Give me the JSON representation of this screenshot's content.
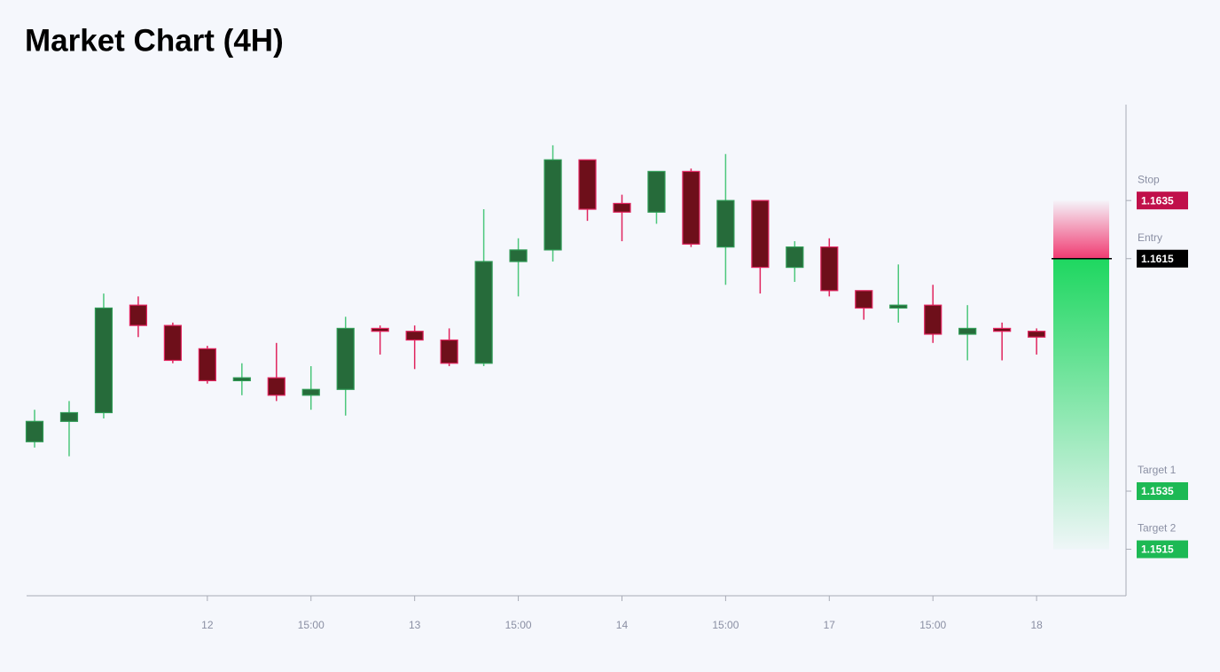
{
  "chart_data": {
    "type": "candlestick",
    "title": "Market Chart (4H)",
    "categories": [
      null,
      null,
      null,
      null,
      null,
      "12",
      null,
      null,
      "15:00",
      null,
      null,
      "13",
      null,
      null,
      "15:00",
      null,
      null,
      "14",
      null,
      null,
      "15:00",
      null,
      null,
      "17",
      null,
      null,
      "15:00",
      null,
      null,
      "18"
    ],
    "open": [
      1.1552,
      1.1559,
      1.1562,
      1.1599,
      1.1592,
      1.1584,
      1.1573,
      1.1574,
      1.1568,
      1.157,
      1.1591,
      1.159,
      1.1587,
      1.1579,
      1.1614,
      1.1618,
      1.1649,
      1.1634,
      1.1631,
      1.1645,
      1.1619,
      1.1635,
      1.1612,
      1.1619,
      1.1604,
      1.1598,
      1.1599,
      1.1589,
      1.1591,
      1.159
    ],
    "high": [
      1.1563,
      1.1566,
      1.1603,
      1.1602,
      1.1593,
      1.1585,
      1.1579,
      1.1586,
      1.1578,
      1.1595,
      1.1592,
      1.1592,
      1.1591,
      1.1632,
      1.1622,
      1.1654,
      1.1649,
      1.1637,
      1.1645,
      1.1646,
      1.1651,
      1.1635,
      1.1621,
      1.1622,
      1.1604,
      1.1613,
      1.1606,
      1.1599,
      1.1593,
      1.1591
    ],
    "low": [
      1.155,
      1.1547,
      1.156,
      1.1588,
      1.1579,
      1.1572,
      1.1568,
      1.1566,
      1.1563,
      1.1561,
      1.1582,
      1.1577,
      1.1578,
      1.1578,
      1.1602,
      1.1614,
      1.1628,
      1.1621,
      1.1627,
      1.1619,
      1.1606,
      1.1603,
      1.1607,
      1.1602,
      1.1594,
      1.1593,
      1.1586,
      1.158,
      1.158,
      1.1582
    ],
    "close": [
      1.1559,
      1.1562,
      1.1598,
      1.1592,
      1.158,
      1.1573,
      1.1574,
      1.1568,
      1.157,
      1.1591,
      1.159,
      1.1587,
      1.1579,
      1.1614,
      1.1618,
      1.1649,
      1.1632,
      1.1631,
      1.1645,
      1.162,
      1.1635,
      1.1612,
      1.1619,
      1.1604,
      1.1598,
      1.1599,
      1.1589,
      1.1591,
      1.159,
      1.1588
    ],
    "up_color": "#266b3a",
    "down_color": "#6e0f1a",
    "ylim": [
      1.1499,
      1.1668
    ],
    "levels": [
      {
        "label": "Stop",
        "value": 1.1635,
        "color": "#c0104a"
      },
      {
        "label": "Entry",
        "value": 1.1615,
        "color": "#000000"
      },
      {
        "label": "Target 1",
        "value": 1.1535,
        "color": "#1db954"
      },
      {
        "label": "Target 2",
        "value": 1.1515,
        "color": "#1db954"
      }
    ]
  }
}
